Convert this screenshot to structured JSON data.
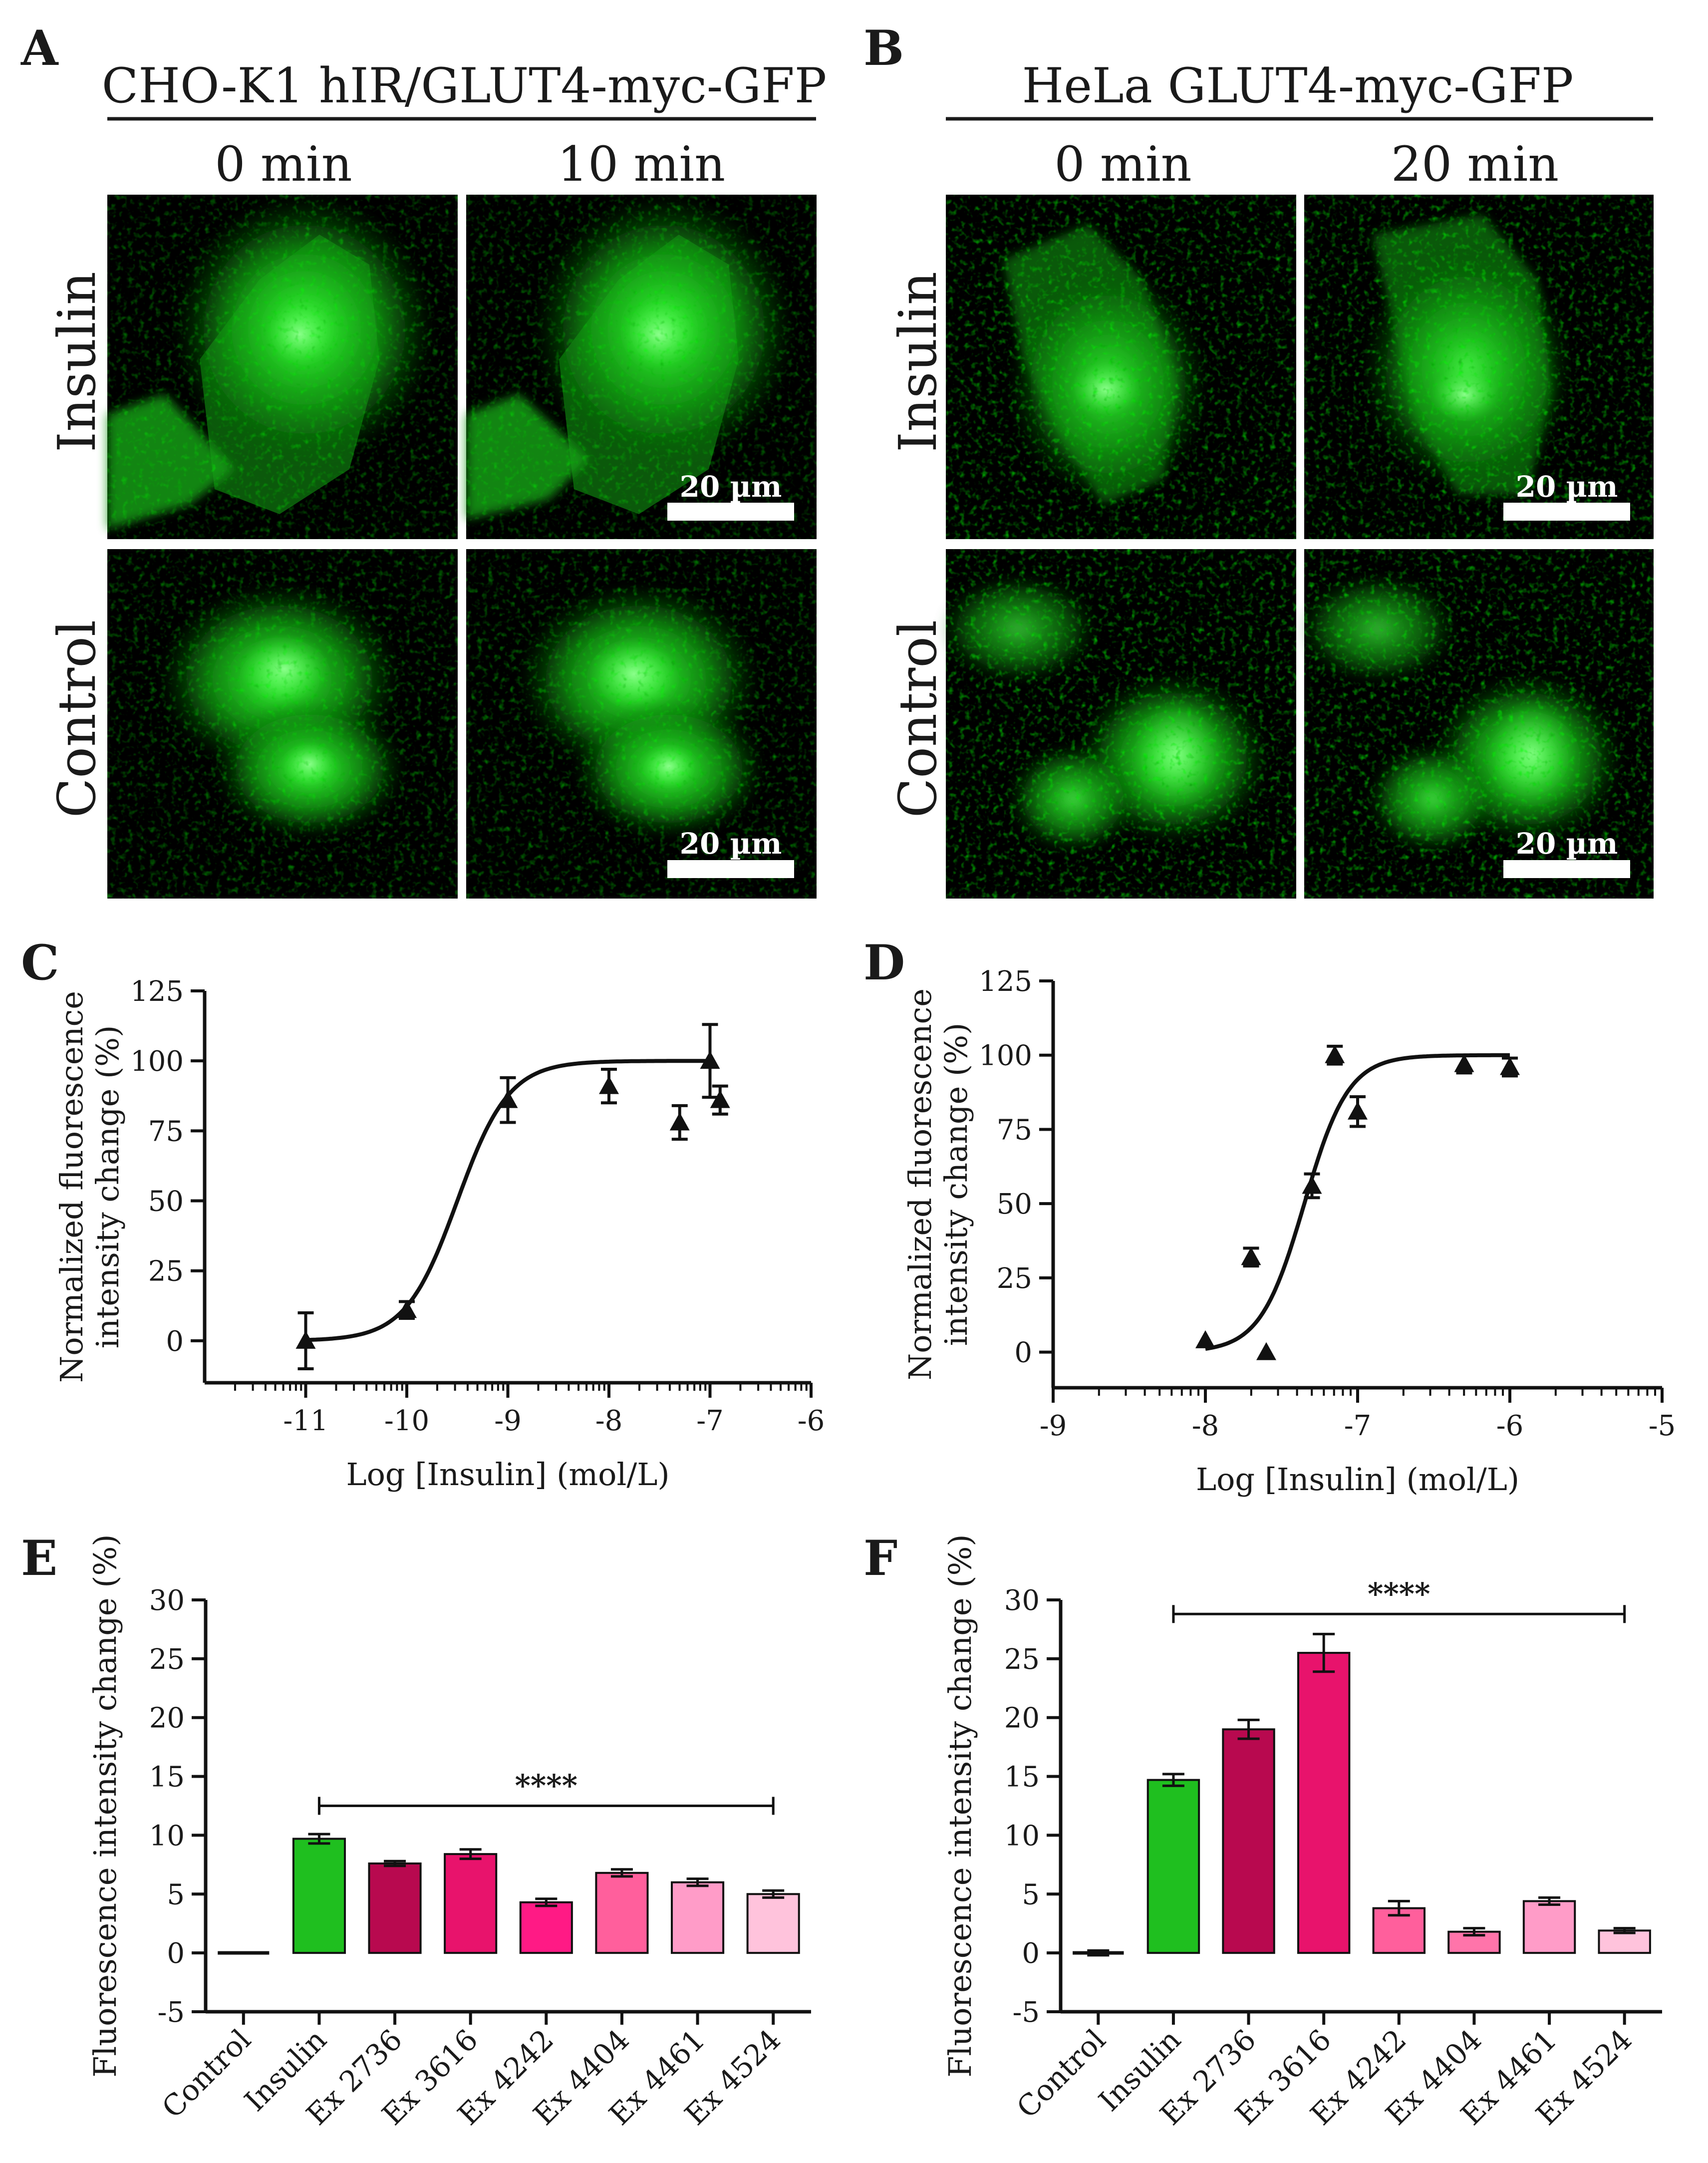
{
  "figure": {
    "panels": {
      "A": {
        "letter": "A",
        "title": "CHO-K1 hIR/GLUT4-myc-GFP",
        "col_labels": [
          "0 min",
          "10 min"
        ],
        "row_labels": [
          "Insulin",
          "Control"
        ],
        "scale_bar": "20 µm"
      },
      "B": {
        "letter": "B",
        "title": "HeLa GLUT4-myc-GFP",
        "col_labels": [
          "0 min",
          "20 min"
        ],
        "row_labels": [
          "Insulin",
          "Control"
        ],
        "scale_bar": "20 µm"
      },
      "C": {
        "letter": "C"
      },
      "D": {
        "letter": "D"
      },
      "E": {
        "letter": "E"
      },
      "F": {
        "letter": "F"
      }
    },
    "colors": {
      "micrograph_bg": "#000000",
      "cell_green": "#2fcf2f",
      "insulin_bar": "#1fbf1f"
    }
  },
  "chart_data": [
    {
      "id": "C",
      "type": "scatter",
      "xlabel": "Log [Insulin] (mol/L)",
      "ylabel": [
        "Normalized fluorescence",
        "intensity change (%)"
      ],
      "xlim": [
        -12,
        -6
      ],
      "ylim": [
        -15,
        125
      ],
      "xticks": [
        -11,
        -10,
        -9,
        -8,
        -7,
        -6
      ],
      "yticks": [
        0,
        25,
        50,
        75,
        100,
        125
      ],
      "points": [
        {
          "x": -11,
          "y": 0,
          "err": 10
        },
        {
          "x": -10,
          "y": 11,
          "err": 3
        },
        {
          "x": -9,
          "y": 86,
          "err": 8
        },
        {
          "x": -8,
          "y": 91,
          "err": 6
        },
        {
          "x": -7.3,
          "y": 78,
          "err": 6
        },
        {
          "x": -7,
          "y": 100,
          "err": 13
        },
        {
          "x": -6.9,
          "y": 86,
          "err": 5
        }
      ],
      "curve": {
        "bottom": 0,
        "top": 100,
        "logEC50": -9.5,
        "hill": 1.7,
        "x_range": [
          -11,
          -7
        ]
      }
    },
    {
      "id": "D",
      "type": "scatter",
      "xlabel": "Log [Insulin] (mol/L)",
      "ylabel": [
        "Normalized fluorescence",
        "intensity change (%)"
      ],
      "xlim": [
        -9,
        -5
      ],
      "ylim": [
        -12,
        125
      ],
      "xticks": [
        -9,
        -8,
        -7,
        -6,
        -5
      ],
      "yticks": [
        0,
        25,
        50,
        75,
        100,
        125
      ],
      "points": [
        {
          "x": -8,
          "y": 4,
          "err": 0
        },
        {
          "x": -7.7,
          "y": 32,
          "err": 3
        },
        {
          "x": -7.6,
          "y": 0,
          "err": 0
        },
        {
          "x": -7.3,
          "y": 56,
          "err": 4
        },
        {
          "x": -7.15,
          "y": 100,
          "err": 3
        },
        {
          "x": -7,
          "y": 81,
          "err": 5
        },
        {
          "x": -6.3,
          "y": 97,
          "err": 3
        },
        {
          "x": -6,
          "y": 96,
          "err": 3
        }
      ],
      "curve": {
        "bottom": 0,
        "top": 100,
        "logEC50": -7.35,
        "hill": 3.0,
        "x_range": [
          -8,
          -6
        ]
      }
    },
    {
      "id": "E",
      "type": "bar",
      "ylabel": "Fluorescence intensity change (%)",
      "ylim": [
        -5,
        30
      ],
      "yticks": [
        -5,
        0,
        5,
        10,
        15,
        20,
        25,
        30
      ],
      "categories": [
        "Control",
        "Insulin",
        "Ex 2736",
        "Ex 3616",
        "Ex 4242",
        "Ex 4404",
        "Ex 4461",
        "Ex 4524"
      ],
      "values": [
        0,
        9.7,
        7.6,
        8.4,
        4.3,
        6.8,
        6.0,
        5.0
      ],
      "errors": [
        0,
        0.4,
        0.2,
        0.4,
        0.3,
        0.3,
        0.3,
        0.3
      ],
      "colors": [
        "#ffffff",
        "#1fbf1f",
        "#b8094f",
        "#e8136c",
        "#ff1a85",
        "#ff5f9c",
        "#ff9cc8",
        "#ffc3dc"
      ],
      "significance": {
        "label": "****",
        "from": "Insulin",
        "to": "Ex 4524",
        "y": 12.5
      }
    },
    {
      "id": "F",
      "type": "bar",
      "ylabel": "Fluorescence intensity change (%)",
      "ylim": [
        -5,
        30
      ],
      "yticks": [
        -5,
        0,
        5,
        10,
        15,
        20,
        25,
        30
      ],
      "categories": [
        "Control",
        "Insulin",
        "Ex 2736",
        "Ex 3616",
        "Ex 4242",
        "Ex 4404",
        "Ex 4461",
        "Ex 4524"
      ],
      "values": [
        0,
        14.7,
        19.0,
        25.5,
        3.8,
        1.8,
        4.4,
        1.9
      ],
      "errors": [
        0.2,
        0.5,
        0.8,
        1.6,
        0.6,
        0.3,
        0.3,
        0.2
      ],
      "colors": [
        "#ffffff",
        "#1fbf1f",
        "#b8094f",
        "#e8136c",
        "#ff5f9c",
        "#ff74aa",
        "#ff9cc8",
        "#ffc3dc"
      ],
      "significance": {
        "label": "****",
        "from": "Insulin",
        "to": "Ex 4524",
        "y": 28.8
      }
    }
  ]
}
